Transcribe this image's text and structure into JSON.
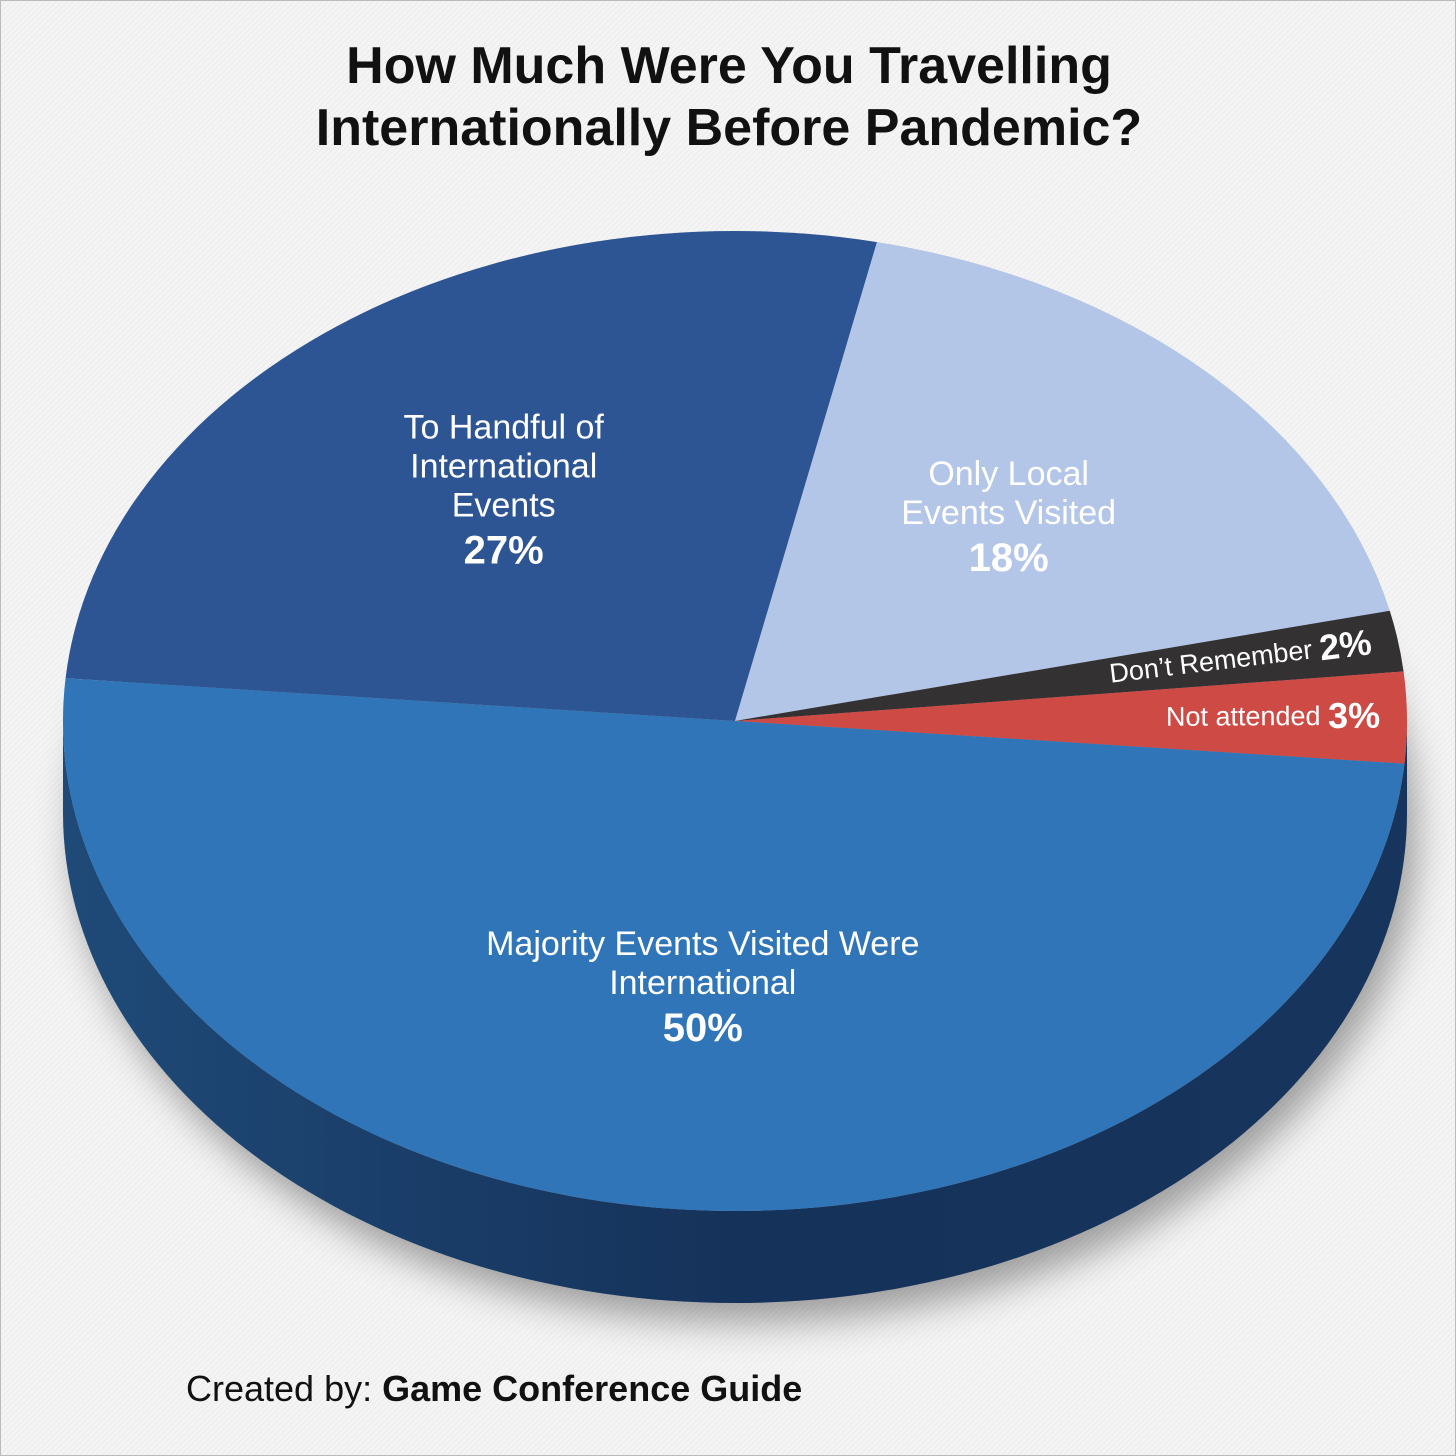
{
  "chart_data": {
    "type": "pie",
    "title": "How Much Were You Travelling Internationally Before Pandemic?",
    "categories": [
      "To Handful of International Events",
      "Only Local Events Visited",
      "Don’t Remember",
      "Not attended",
      "Majority Events Visited Were International"
    ],
    "values": [
      27,
      18,
      2,
      3,
      50
    ],
    "value_labels": [
      "27%",
      "18%",
      "2%",
      "3%",
      "50%"
    ],
    "colors": [
      "#2e5593",
      "#b3c6e7",
      "#333132",
      "#cd4a45",
      "#3075b8"
    ]
  },
  "credit": {
    "prefix": "Created by:",
    "source": "Game Conference Guide"
  }
}
